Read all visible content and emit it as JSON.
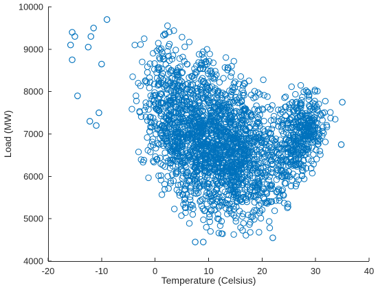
{
  "chart_data": {
    "type": "scatter",
    "title": "",
    "xlabel": "Temperature (Celsius)",
    "ylabel": "Load (MW)",
    "xlim": [
      -20,
      40
    ],
    "ylim": [
      4000,
      10000
    ],
    "x_ticks": [
      "-20",
      "-10",
      "0",
      "10",
      "20",
      "30",
      "40"
    ],
    "y_ticks": [
      "4000",
      "5000",
      "6000",
      "7000",
      "8000",
      "9000",
      "10000"
    ],
    "grid": false,
    "legend": "none",
    "marker": "circle",
    "colors": {
      "marker_edge": "#0072BD",
      "axis": "#262626",
      "background": "#ffffff"
    },
    "series": [
      {
        "marker_color": "#0072BD",
        "density_profile": [
          {
            "x": -8,
            "y_low": 6500,
            "y_high": 9600
          },
          {
            "x": -6,
            "y_low": 6200,
            "y_high": 9500
          },
          {
            "x": -4,
            "y_low": 5900,
            "y_high": 9400
          },
          {
            "x": -2,
            "y_low": 5600,
            "y_high": 9400
          },
          {
            "x": 0,
            "y_low": 5500,
            "y_high": 9500
          },
          {
            "x": 2,
            "y_low": 5400,
            "y_high": 9500
          },
          {
            "x": 4,
            "y_low": 5300,
            "y_high": 9300
          },
          {
            "x": 6,
            "y_low": 5000,
            "y_high": 9100
          },
          {
            "x": 8,
            "y_low": 4900,
            "y_high": 9000
          },
          {
            "x": 10,
            "y_low": 4800,
            "y_high": 8900
          },
          {
            "x": 12,
            "y_low": 4750,
            "y_high": 8800
          },
          {
            "x": 14,
            "y_low": 4700,
            "y_high": 8700
          },
          {
            "x": 16,
            "y_low": 4700,
            "y_high": 8500
          },
          {
            "x": 18,
            "y_low": 4700,
            "y_high": 8300
          },
          {
            "x": 20,
            "y_low": 4800,
            "y_high": 8200
          },
          {
            "x": 22,
            "y_low": 4900,
            "y_high": 8100
          },
          {
            "x": 24,
            "y_low": 5200,
            "y_high": 8100
          },
          {
            "x": 26,
            "y_low": 5600,
            "y_high": 8000
          },
          {
            "x": 28,
            "y_low": 6000,
            "y_high": 8100
          },
          {
            "x": 30,
            "y_low": 6200,
            "y_high": 8100
          },
          {
            "x": 32,
            "y_low": 6500,
            "y_high": 8100
          },
          {
            "x": 34,
            "y_low": 7200,
            "y_high": 8000
          }
        ],
        "outliers": [
          {
            "x": -15.5,
            "y": 9400
          },
          {
            "x": -15.0,
            "y": 9300
          },
          {
            "x": -15.8,
            "y": 9100
          },
          {
            "x": -15.5,
            "y": 8750
          },
          {
            "x": -14.5,
            "y": 7900
          },
          {
            "x": -12.5,
            "y": 9050
          },
          {
            "x": -12.0,
            "y": 9300
          },
          {
            "x": -11.5,
            "y": 9500
          },
          {
            "x": -12.2,
            "y": 7300
          },
          {
            "x": -11.0,
            "y": 7200
          },
          {
            "x": -10.5,
            "y": 7500
          },
          {
            "x": -10.0,
            "y": 8650
          },
          {
            "x": -9.0,
            "y": 9700
          },
          {
            "x": 7.5,
            "y": 4450
          },
          {
            "x": 9.0,
            "y": 4450
          },
          {
            "x": 22.0,
            "y": 4550
          },
          {
            "x": 35.0,
            "y": 7750
          },
          {
            "x": 34.8,
            "y": 6750
          }
        ]
      }
    ]
  }
}
